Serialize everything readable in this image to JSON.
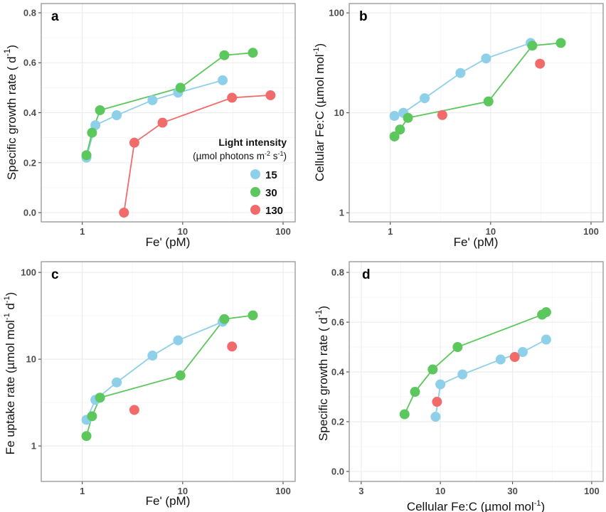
{
  "chart_data": [
    {
      "type": "line",
      "panel": "a",
      "xlabel": "Fe' (pM)",
      "ylabel": {
        "main": "Specific growth rate ( d",
        "sup": "-1",
        "end": ")"
      },
      "xscale": "log",
      "xlim": [
        0.39,
        132
      ],
      "xticks": [
        1,
        10,
        100
      ],
      "yscale": "linear",
      "ylim": [
        -0.037,
        0.837
      ],
      "yticks": [
        0.0,
        0.2,
        0.4,
        0.6,
        0.8
      ],
      "series": [
        {
          "name": "15",
          "lines": true,
          "points": [
            [
              1.1,
              0.22
            ],
            [
              1.35,
              0.35
            ],
            [
              2.2,
              0.39
            ],
            [
              5,
              0.45
            ],
            [
              9,
              0.48
            ],
            [
              25,
              0.53
            ]
          ]
        },
        {
          "name": "30",
          "lines": true,
          "points": [
            [
              1.1,
              0.23
            ],
            [
              1.25,
              0.32
            ],
            [
              1.5,
              0.41
            ],
            [
              9.5,
              0.5
            ],
            [
              26,
              0.63
            ],
            [
              50,
              0.64
            ]
          ]
        },
        {
          "name": "130",
          "lines": true,
          "points": [
            [
              2.6,
              0.0
            ],
            [
              3.3,
              0.28
            ],
            [
              6.3,
              0.36
            ],
            [
              31,
              0.46
            ],
            [
              75,
              0.47
            ]
          ]
        }
      ]
    },
    {
      "type": "line",
      "panel": "b",
      "xlabel": "Fe' (pM)",
      "ylabel": {
        "main": "Cellular Fe:C (µmol  mol",
        "sup": "-1",
        "end": ")"
      },
      "xscale": "log",
      "xlim": [
        0.39,
        132
      ],
      "xticks": [
        1,
        10,
        100
      ],
      "yscale": "log",
      "ylim": [
        0.81,
        124
      ],
      "yticks": [
        1,
        10,
        100
      ],
      "series": [
        {
          "name": "15",
          "lines": true,
          "points": [
            [
              1.1,
              9.3
            ],
            [
              1.35,
              10
            ],
            [
              2.2,
              14
            ],
            [
              5,
              25
            ],
            [
              9,
              35
            ],
            [
              25,
              50
            ]
          ]
        },
        {
          "name": "30",
          "lines": true,
          "points": [
            [
              1.1,
              5.8
            ],
            [
              1.25,
              6.8
            ],
            [
              1.5,
              8.9
            ],
            [
              9.5,
              13
            ],
            [
              26,
              47
            ],
            [
              50,
              50
            ]
          ]
        },
        {
          "name": "130",
          "lines": false,
          "points": [
            [
              3.3,
              9.5
            ],
            [
              31,
              31
            ]
          ]
        }
      ]
    },
    {
      "type": "line",
      "panel": "c",
      "xlabel": "Fe' (pM)",
      "ylabel": {
        "main": "Fe uptake rate (µmol  mol",
        "sup": "-1",
        "end": " d",
        "sup2": "-1",
        "end2": ")"
      },
      "xscale": "log",
      "xlim": [
        0.39,
        132
      ],
      "xticks": [
        1,
        10,
        100
      ],
      "yscale": "log",
      "ylim": [
        0.39,
        133
      ],
      "yticks": [
        1,
        10,
        100
      ],
      "series": [
        {
          "name": "15",
          "lines": true,
          "points": [
            [
              1.1,
              2.0
            ],
            [
              1.35,
              3.4
            ],
            [
              2.2,
              5.4
            ],
            [
              5,
              11
            ],
            [
              9,
              16.5
            ],
            [
              25,
              27
            ]
          ]
        },
        {
          "name": "30",
          "lines": true,
          "points": [
            [
              1.1,
              1.3
            ],
            [
              1.25,
              2.2
            ],
            [
              1.5,
              3.6
            ],
            [
              9.5,
              6.5
            ],
            [
              26,
              29
            ],
            [
              50,
              32
            ]
          ]
        },
        {
          "name": "130",
          "lines": false,
          "points": [
            [
              3.3,
              2.6
            ],
            [
              31,
              14
            ]
          ]
        }
      ]
    },
    {
      "type": "line",
      "panel": "d",
      "xlabel": {
        "main": "Cellular Fe:C (µmol mol",
        "sup": "-1",
        "end": ")"
      },
      "ylabel": {
        "main": "Specific growth rate ( d",
        "sup": "-1",
        "end": ")"
      },
      "xscale": "log",
      "xlim": [
        2.5,
        119
      ],
      "xticks": [
        3,
        10,
        30,
        100
      ],
      "yscale": "linear",
      "ylim": [
        -0.04,
        0.843
      ],
      "yticks": [
        0.0,
        0.2,
        0.4,
        0.6,
        0.8
      ],
      "series": [
        {
          "name": "15",
          "lines": true,
          "points": [
            [
              9.3,
              0.22
            ],
            [
              10,
              0.35
            ],
            [
              14,
              0.39
            ],
            [
              25,
              0.45
            ],
            [
              35,
              0.48
            ],
            [
              50,
              0.53
            ]
          ]
        },
        {
          "name": "30",
          "lines": true,
          "points": [
            [
              5.8,
              0.23
            ],
            [
              6.8,
              0.32
            ],
            [
              8.9,
              0.41
            ],
            [
              13,
              0.5
            ],
            [
              47,
              0.63
            ],
            [
              50,
              0.64
            ]
          ]
        },
        {
          "name": "130",
          "lines": false,
          "points": [
            [
              9.5,
              0.28
            ],
            [
              31,
              0.46
            ]
          ]
        }
      ]
    }
  ],
  "legend": {
    "title": "Light intensity",
    "subtitle": {
      "main": "(µmol photons m",
      "sup1": "-2",
      "mid": " s",
      "sup2": "-1",
      "end": ")"
    },
    "placement": "bottom-right of panel a",
    "entries": [
      "15",
      "30",
      "130"
    ]
  },
  "colors": {
    "15": "#8ecfe9",
    "30": "#5cc75c",
    "130": "#f26b6b",
    "grid": "#ebebeb",
    "border": "#8c8c8c"
  }
}
